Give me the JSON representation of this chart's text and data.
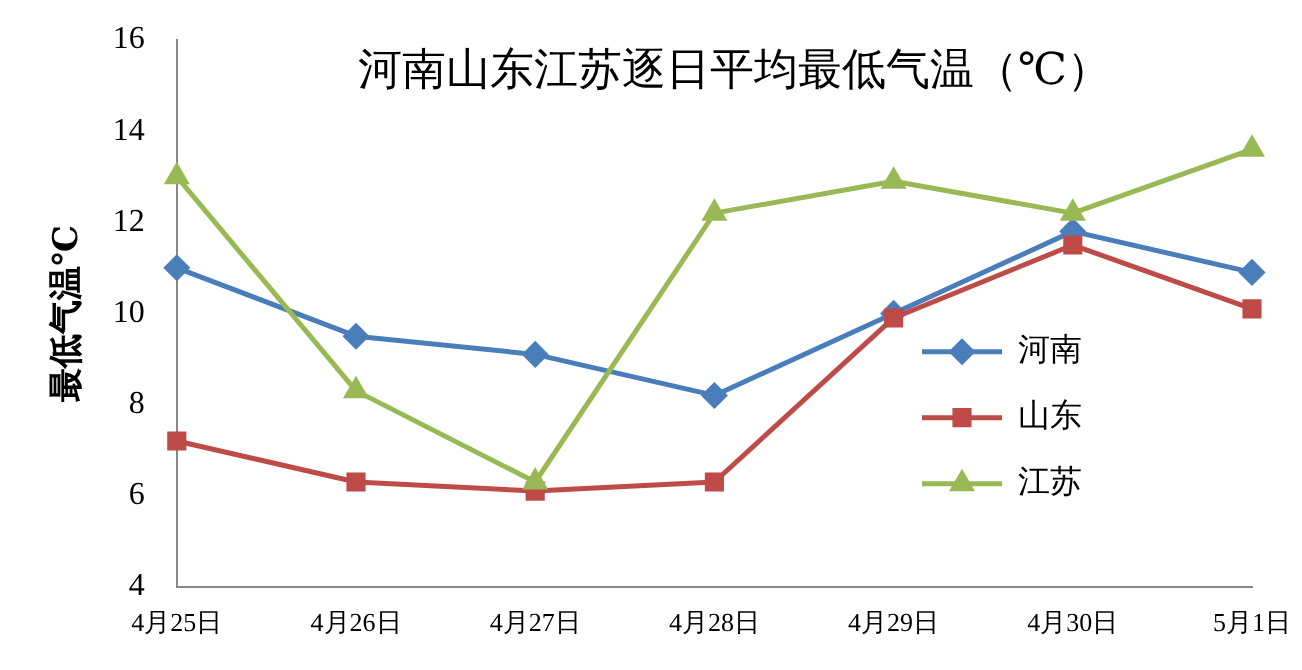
{
  "chart_data": {
    "type": "line",
    "title": "河南山东江苏逐日平均最低气温（℃）",
    "ylabel": "最低气温℃",
    "categories": [
      "4月25日",
      "4月26日",
      "4月27日",
      "4月28日",
      "4月29日",
      "4月30日",
      "5月1日"
    ],
    "ylim": [
      4,
      16
    ],
    "yticks": [
      4,
      6,
      8,
      10,
      12,
      14,
      16
    ],
    "grid": false,
    "legend": "right",
    "line_style": "solid",
    "series": [
      {
        "name": "河南",
        "color": "#4a7ebb",
        "marker": "diamond",
        "values": [
          11.0,
          9.5,
          9.1,
          8.2,
          10.0,
          11.8,
          10.9
        ]
      },
      {
        "name": "山东",
        "color": "#be4b48",
        "marker": "square",
        "values": [
          7.2,
          6.3,
          6.1,
          6.3,
          9.9,
          11.5,
          10.1
        ]
      },
      {
        "name": "江苏",
        "color": "#98b954",
        "marker": "triangle",
        "values": [
          13.0,
          8.3,
          6.3,
          12.2,
          12.9,
          12.2,
          13.6
        ]
      }
    ]
  }
}
